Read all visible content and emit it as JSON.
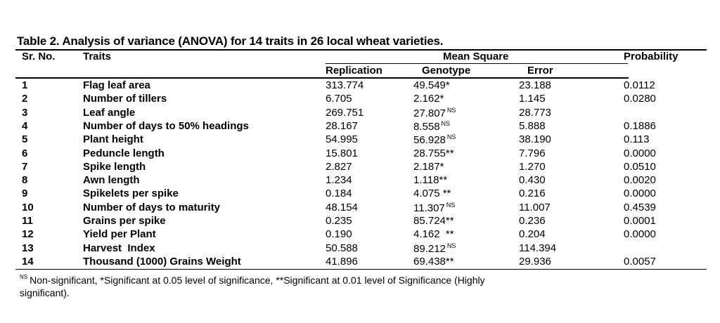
{
  "table": {
    "title": "Table 2.  Analysis of variance (ANOVA) for 14 traits in 26 local wheat varieties.",
    "headers": {
      "sr_no": "Sr. No.",
      "traits": "Traits",
      "mean_square": "Mean Square",
      "replication": "Replication",
      "genotype": "Genotype",
      "error": "Error",
      "probability": "Probability"
    },
    "rows": [
      {
        "sr": "1",
        "trait": "Flag leaf area",
        "rep": "313.774",
        "gen": "49.549*",
        "gen_sup": "",
        "err": "23.188",
        "prob": "0.0112"
      },
      {
        "sr": "2",
        "trait": "Number of tillers",
        "rep": "6.705",
        "gen": "2.162*",
        "gen_sup": "",
        "err": "1.145",
        "prob": "0.0280"
      },
      {
        "sr": "3",
        "trait": "Leaf angle",
        "rep": "269.751",
        "gen": "27.807",
        "gen_sup": "NS",
        "err": "28.773",
        "prob": ""
      },
      {
        "sr": "4",
        "trait": "Number of days to 50% headings",
        "rep": "28.167",
        "gen": "8.558",
        "gen_sup": "NS",
        "err": "5.888",
        "prob": "0.1886"
      },
      {
        "sr": "5",
        "trait": "Plant height",
        "rep": "54.995",
        "gen": "56.928",
        "gen_sup": "NS",
        "err": "38.190",
        "prob": "0.113"
      },
      {
        "sr": "6",
        "trait": "Peduncle length",
        "rep": "15.801",
        "gen": "28.755**",
        "gen_sup": "",
        "err": "7.796",
        "prob": "0.0000"
      },
      {
        "sr": "7",
        "trait": "Spike length",
        "rep": "2.827",
        "gen": "2.187*",
        "gen_sup": "",
        "err": "1.270",
        "prob": "0.0510"
      },
      {
        "sr": "8",
        "trait": "Awn length",
        "rep": "1.234",
        "gen": "1.118**",
        "gen_sup": "",
        "err": "0.430",
        "prob": "0.0020"
      },
      {
        "sr": "9",
        "trait": "Spikelets per spike",
        "rep": "0.184",
        "gen": "4.075 **",
        "gen_sup": "",
        "err": "0.216",
        "prob": "0.0000"
      },
      {
        "sr": "10",
        "trait": "Number of days to maturity",
        "rep": "48.154",
        "gen": "11.307",
        "gen_sup": "NS",
        "err": "11.007",
        "prob": "0.4539"
      },
      {
        "sr": "11",
        "trait": "Grains per spike",
        "rep": "0.235",
        "gen": "85.724**",
        "gen_sup": "",
        "err": "0.236",
        "prob": "0.0001"
      },
      {
        "sr": "12",
        "trait": "Yield per Plant",
        "rep": "0.190",
        "gen": "4.162  **",
        "gen_sup": "",
        "err": "0.204",
        "prob": "0.0000"
      },
      {
        "sr": "13",
        "trait": "Harvest  Index",
        "rep": "50.588",
        "gen": "89.212",
        "gen_sup": "NS",
        "err": "114.394",
        "prob": ""
      },
      {
        "sr": "14",
        "trait": "Thousand (1000) Grains Weight",
        "rep": "41.896",
        "gen": "69.438**",
        "gen_sup": "",
        "err": "29.936",
        "prob": "0.0057"
      }
    ],
    "footnote": {
      "sup": "NS",
      "text": "Non-significant, *Significant at 0.05 level of significance, **Significant at 0.01 level of Significance (Highly significant)."
    }
  }
}
